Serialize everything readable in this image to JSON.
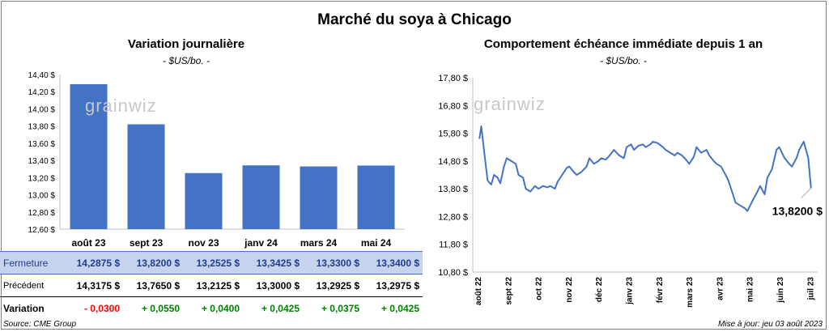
{
  "title": "Marché du soya à Chicago",
  "left_chart": {
    "title": "Variation journalière",
    "unit": "- $US/bo. -",
    "watermark": "grainwiz"
  },
  "right_chart": {
    "title": "Comportement  échéance immédiate depuis 1 an",
    "unit": "- $US/bo. -",
    "watermark": "grainwiz",
    "last_value_label": "13,8200 $"
  },
  "table": {
    "rows": [
      {
        "label": "Fermeture",
        "values": [
          "14,2875  $",
          "13,8200  $",
          "13,2525  $",
          "13,3425  $",
          "13,3300  $",
          "13,3400  $"
        ]
      },
      {
        "label": "Précédent",
        "values": [
          "14,3175  $",
          "13,7650  $",
          "13,2125  $",
          "13,3000  $",
          "13,2925  $",
          "13,2975  $"
        ]
      },
      {
        "label": "Variation",
        "values": [
          "- 0,0300",
          "+ 0,0550",
          "+ 0,0400",
          "+ 0,0425",
          "+ 0,0375",
          "+ 0,0425"
        ]
      }
    ]
  },
  "source": "Source: CME Group",
  "update": "Mise à jour: jeu 03 août 2023",
  "colors": {
    "bar": "#4472c4",
    "line": "#4472c4",
    "negative": "#ff0000",
    "positive": "#008000",
    "highlight_row": "#c6d3ec"
  },
  "chart_data": [
    {
      "type": "bar",
      "title": "Variation journalière",
      "ylabel": "- $US/bo. -",
      "categories": [
        "août 23",
        "sept 23",
        "nov 23",
        "janv 24",
        "mars 24",
        "mai 24"
      ],
      "values": [
        14.2875,
        13.82,
        13.2525,
        13.3425,
        13.33,
        13.34
      ],
      "ylim": [
        12.6,
        14.4
      ],
      "yticks": [
        "12,60 $",
        "12,80 $",
        "13,00 $",
        "13,20 $",
        "13,40 $",
        "13,60 $",
        "13,80 $",
        "14,00 $",
        "14,20 $",
        "14,40 $"
      ],
      "grid": false
    },
    {
      "type": "line",
      "title": "Comportement  échéance immédiate depuis 1 an",
      "ylabel": "- $US/bo. -",
      "ylim": [
        10.8,
        17.8
      ],
      "yticks": [
        "10,80 $",
        "11,80 $",
        "12,80 $",
        "13,80 $",
        "14,80 $",
        "15,80 $",
        "16,80 $",
        "17,80 $"
      ],
      "xticks": [
        "août 22",
        "sept 22",
        "oct 22",
        "nov 22",
        "déc 22",
        "janv 23",
        "févr 23",
        "mars 23",
        "avr 23",
        "mai 23",
        "juin 23",
        "juil 23"
      ],
      "grid": false,
      "series": [
        {
          "x": [
            "2022-08-03",
            "2022-08-05",
            "2022-08-09",
            "2022-08-12",
            "2022-08-16",
            "2022-08-19",
            "2022-08-23",
            "2022-08-26",
            "2022-08-30",
            "2022-09-02",
            "2022-09-07",
            "2022-09-12",
            "2022-09-15",
            "2022-09-20",
            "2022-09-23",
            "2022-09-28",
            "2022-10-03",
            "2022-10-07",
            "2022-10-12",
            "2022-10-17",
            "2022-10-20",
            "2022-10-25",
            "2022-10-28",
            "2022-11-02",
            "2022-11-07",
            "2022-11-10",
            "2022-11-15",
            "2022-11-18",
            "2022-11-23",
            "2022-11-29",
            "2022-12-02",
            "2022-12-07",
            "2022-12-12",
            "2022-12-15",
            "2022-12-20",
            "2022-12-23",
            "2022-12-29",
            "2023-01-04",
            "2023-01-09",
            "2023-01-12",
            "2023-01-17",
            "2023-01-20",
            "2023-01-25",
            "2023-01-30",
            "2023-02-02",
            "2023-02-07",
            "2023-02-10",
            "2023-02-15",
            "2023-02-21",
            "2023-02-24",
            "2023-03-01",
            "2023-03-06",
            "2023-03-09",
            "2023-03-14",
            "2023-03-17",
            "2023-03-22",
            "2023-03-27",
            "2023-03-30",
            "2023-04-04",
            "2023-04-10",
            "2023-04-13",
            "2023-04-18",
            "2023-04-21",
            "2023-04-26",
            "2023-05-01",
            "2023-05-04",
            "2023-05-09",
            "2023-05-12",
            "2023-05-17",
            "2023-05-22",
            "2023-05-25",
            "2023-05-31",
            "2023-06-05",
            "2023-06-08",
            "2023-06-13",
            "2023-06-16",
            "2023-06-21",
            "2023-06-26",
            "2023-06-29",
            "2023-07-05",
            "2023-07-10",
            "2023-07-13",
            "2023-07-18",
            "2023-07-21",
            "2023-07-26",
            "2023-07-31",
            "2023-08-03"
          ],
          "y": [
            15.6,
            16.05,
            14.9,
            14.1,
            13.95,
            14.3,
            14.2,
            14.0,
            14.6,
            14.9,
            14.8,
            14.7,
            14.3,
            14.2,
            13.8,
            13.7,
            13.9,
            13.8,
            13.9,
            13.85,
            13.9,
            13.8,
            14.05,
            14.3,
            14.55,
            14.6,
            14.4,
            14.3,
            14.4,
            14.6,
            14.9,
            14.7,
            14.8,
            14.9,
            14.85,
            14.95,
            15.2,
            15.0,
            14.9,
            15.3,
            15.4,
            15.2,
            15.35,
            15.4,
            15.3,
            15.4,
            15.5,
            15.45,
            15.3,
            15.2,
            15.1,
            15.0,
            15.1,
            15.0,
            14.9,
            14.7,
            14.95,
            15.3,
            15.1,
            15.2,
            15.0,
            14.8,
            14.7,
            14.6,
            14.3,
            14.1,
            13.6,
            13.3,
            13.2,
            13.1,
            13.0,
            13.4,
            13.7,
            13.9,
            13.6,
            14.2,
            14.5,
            15.2,
            15.3,
            14.9,
            14.7,
            14.6,
            14.9,
            15.2,
            15.5,
            14.9,
            13.82
          ]
        }
      ]
    }
  ]
}
